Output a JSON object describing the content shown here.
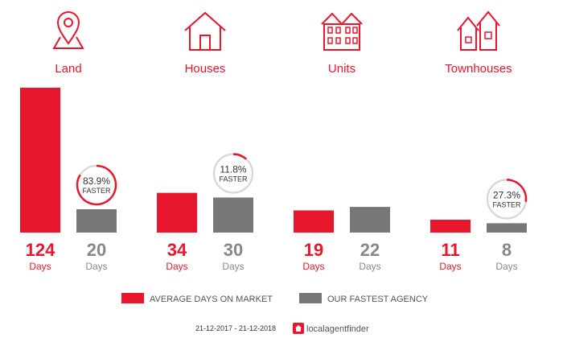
{
  "chart_data": {
    "type": "bar",
    "categories": [
      "Land",
      "Houses",
      "Units",
      "Townhouses"
    ],
    "icons": [
      "location-pin-icon",
      "house-icon",
      "units-building-icon",
      "townhouses-icon"
    ],
    "series": [
      {
        "name": "AVERAGE DAYS ON MARKET",
        "color": "#e8172d",
        "values": [
          124,
          34,
          19,
          11
        ]
      },
      {
        "name": "OUR FASTEST AGENCY",
        "color": "#777777",
        "values": [
          20,
          30,
          22,
          8
        ]
      }
    ],
    "value_unit": "Days",
    "faster": [
      {
        "index": 0,
        "percent": 83.9,
        "label": "83.9%",
        "word": "FASTER"
      },
      {
        "index": 1,
        "percent": 11.8,
        "label": "11.8%",
        "word": "FASTER"
      },
      {
        "index": 3,
        "percent": 27.3,
        "label": "27.3%",
        "word": "FASTER"
      }
    ],
    "ylim": [
      0,
      124
    ],
    "legend_position": "bottom",
    "grid": false
  },
  "footer": {
    "date_range": "21-12-2017 - 21-12-2018",
    "brand": "localagentfinder"
  }
}
